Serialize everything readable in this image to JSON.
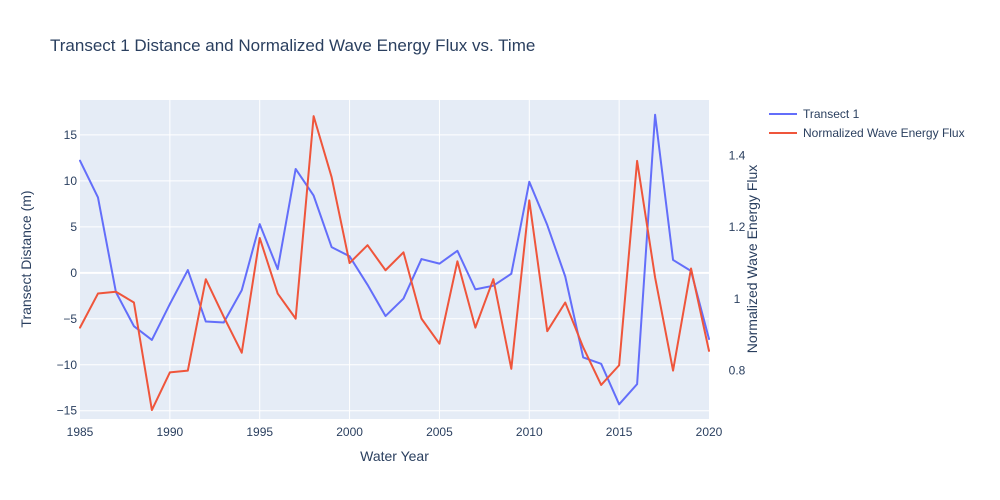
{
  "chart_data": {
    "type": "line",
    "title": "Transect 1 Distance and Normalized Wave Energy Flux vs. Time",
    "xlabel": "Water Year",
    "ylabel": "Transect Distance (m)",
    "y2label": "Normalized Wave Energy Flux",
    "xlim": [
      1985,
      2020
    ],
    "ylim": [
      -15.9,
      18.8
    ],
    "y2lim": [
      0.665,
      1.555
    ],
    "xticks": [
      1985,
      1990,
      1995,
      2000,
      2005,
      2010,
      2015,
      2020
    ],
    "yticks": [
      -15,
      -10,
      -5,
      0,
      5,
      10,
      15
    ],
    "y2ticks": [
      0.8,
      1.0,
      1.2,
      1.4
    ],
    "y2tick_labels": [
      "0.8",
      "1",
      "1.2",
      "1.4"
    ],
    "grid": true,
    "legend_position": "top-right outside",
    "colors": {
      "plot_bg": "#e5ecf6",
      "grid": "#ffffff",
      "text": "#2a3f5f"
    },
    "series": [
      {
        "name": "Transect 1",
        "color": "#636efa",
        "axis": "left",
        "x": [
          1985,
          1986,
          1987,
          1988,
          1989,
          1990,
          1991,
          1992,
          1993,
          1994,
          1995,
          1996,
          1997,
          1998,
          1999,
          2000,
          2001,
          2002,
          2003,
          2004,
          2005,
          2006,
          2007,
          2008,
          2009,
          2010,
          2011,
          2012,
          2013,
          2014,
          2015,
          2016,
          2017,
          2018,
          2019,
          2020
        ],
        "y": [
          12.2,
          8.2,
          -2.1,
          -5.8,
          -7.3,
          -3.4,
          0.3,
          -5.3,
          -5.4,
          -1.9,
          5.3,
          0.4,
          11.3,
          8.4,
          2.8,
          1.8,
          -1.3,
          -4.7,
          -2.8,
          1.5,
          1.0,
          2.4,
          -1.8,
          -1.4,
          -0.1,
          9.9,
          5.2,
          -0.4,
          -9.2,
          -9.9,
          -14.3,
          -12.1,
          17.2,
          1.4,
          0.2,
          -7.2
        ]
      },
      {
        "name": "Normalized Wave Energy Flux",
        "color": "#ef553b",
        "axis": "right",
        "x": [
          1985,
          1986,
          1987,
          1988,
          1989,
          1990,
          1991,
          1992,
          1993,
          1994,
          1995,
          1996,
          1997,
          1998,
          1999,
          2000,
          2001,
          2002,
          2003,
          2004,
          2005,
          2006,
          2007,
          2008,
          2009,
          2010,
          2011,
          2012,
          2013,
          2014,
          2015,
          2016,
          2017,
          2018,
          2019,
          2020
        ],
        "y": [
          0.92,
          1.015,
          1.02,
          0.99,
          0.69,
          0.795,
          0.8,
          1.055,
          0.95,
          0.85,
          1.17,
          1.015,
          0.945,
          1.51,
          1.34,
          1.1,
          1.15,
          1.08,
          1.13,
          0.945,
          0.875,
          1.105,
          0.92,
          1.055,
          0.805,
          1.275,
          0.91,
          0.99,
          0.865,
          0.76,
          0.815,
          1.385,
          1.06,
          0.8,
          1.085,
          0.855
        ]
      }
    ]
  }
}
